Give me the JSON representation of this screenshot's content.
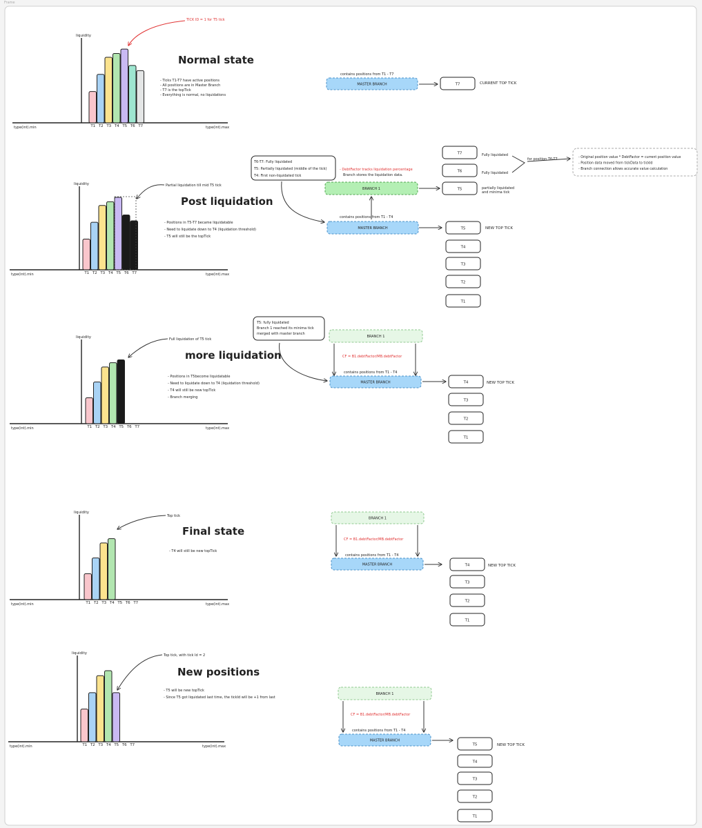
{
  "frame_label": "Frame",
  "colors": {
    "tick": [
      "#f9c6cc",
      "#a9d3f5",
      "#fbe38e",
      "#b2e6b0",
      "#c9b9f3",
      "#9ee6d0",
      "#e4e6e6"
    ],
    "liquidated": "#1a1a1a",
    "master_fill": "#a7d7f9",
    "branch_fill": "#b4efb4",
    "branch_dashed_fill": "#e6f7e6",
    "accent_red": "#e03131"
  },
  "common": {
    "liquidity": "liquidity",
    "axis_min": "type(int).min",
    "axis_max": "type(int).max",
    "ticks": [
      "T1",
      "T2",
      "T3",
      "T4",
      "T5",
      "T6",
      "T7"
    ],
    "master_branch": "MASTER BRANCH",
    "branch1": "BRANCH 1",
    "new_top_tick": "NEW TOP TICK",
    "cf_formula": "CF = B1.debtFactor/MB.debtFactor"
  },
  "sections": [
    {
      "title": "Normal state",
      "annotation": "TICK ID = 1 for T5 tick",
      "bullets": [
        "Ticks T1-T7 have active positions",
        "All positions are in Master Branch",
        "T7 is the topTick",
        "Everything is normal, no liquidations"
      ],
      "bars": [
        {
          "tick": "T1",
          "value": 0.42,
          "color_index": 0
        },
        {
          "tick": "T2",
          "value": 0.65,
          "color_index": 1
        },
        {
          "tick": "T3",
          "value": 0.88,
          "color_index": 2
        },
        {
          "tick": "T4",
          "value": 0.93,
          "color_index": 3
        },
        {
          "tick": "T5",
          "value": 0.99,
          "color_index": 4
        },
        {
          "tick": "T6",
          "value": 0.77,
          "color_index": 5
        },
        {
          "tick": "T7",
          "value": 0.7,
          "color_index": 6
        }
      ],
      "master_caption": "contains positions from T1 - T7",
      "tick_boxes": [
        "T7"
      ],
      "top_tick_label": "CURRENT TOP TICK"
    },
    {
      "title": "Post liquidation",
      "annotation": "Partial liquidation till mid T5 tick",
      "bullets": [
        "Positions in T5-T7 became liquidatable",
        "Need to liquidate down to T4 (liquidation threshold)",
        "T5 will still be the topTick"
      ],
      "bars": [
        {
          "tick": "T1",
          "value": 0.42,
          "color_index": 0
        },
        {
          "tick": "T2",
          "value": 0.65,
          "color_index": 1
        },
        {
          "tick": "T3",
          "value": 0.88,
          "color_index": 2
        },
        {
          "tick": "T4",
          "value": 0.93,
          "color_index": 3
        },
        {
          "tick": "T5",
          "value": 0.99,
          "color_index": 4
        },
        {
          "tick": "T6",
          "value": 0.75,
          "color_index": -1
        },
        {
          "tick": "T7",
          "value": 0.67,
          "color_index": -1
        }
      ],
      "note_box": [
        "T6-T7: Fully liquidated",
        "T5: Partially liquidated (middle of the tick)",
        "T4: First non-liquidated tick"
      ],
      "debt_note": "- DebtFactor tracks liquidation percentage",
      "debt_note2": "Branch stores the liquidation data.",
      "master_caption": "contains positions from T1 - T4",
      "branch_ticks": [
        {
          "tick": "T7",
          "status": "Fully liquidated"
        },
        {
          "tick": "T6",
          "status": "Fully liquidated"
        },
        {
          "tick": "T5",
          "status": "partially liquidated and minima tick"
        }
      ],
      "for_position": "for position T6-T7",
      "info_box": [
        "- Original position value * DebtFactor = current position value",
        "- Position data moved from tickData to tickId",
        "- Branch connection allows accurate value calculation"
      ],
      "tick_boxes": [
        "T5",
        "T4",
        "T3",
        "T2",
        "T1"
      ],
      "top_tick_label": "NEW TOP TICK"
    },
    {
      "title": "more liquidation",
      "annotation": "Full liquidation of T5 tick",
      "bullets": [
        "- Positions in T5become liquidatable",
        "- Need to liquidate down to T4 (liquidation threshold)",
        "- T4 will still be new topTick",
        "- Branch merging"
      ],
      "bars": [
        {
          "tick": "T1",
          "value": 0.36,
          "color_index": 0
        },
        {
          "tick": "T2",
          "value": 0.58,
          "color_index": 1
        },
        {
          "tick": "T3",
          "value": 0.79,
          "color_index": 2
        },
        {
          "tick": "T4",
          "value": 0.85,
          "color_index": 3
        },
        {
          "tick": "T5",
          "value": 0.89,
          "color_index": -1
        }
      ],
      "note_box": [
        "T5: fully liquidated",
        "Branch 1 reached its minima tick",
        "merged with master branch"
      ],
      "master_caption": "contains positions from T1 - T4",
      "tick_boxes": [
        "T4",
        "T3",
        "T2",
        "T1"
      ],
      "top_tick_label": "NEW TOP TICK"
    },
    {
      "title": "Final state",
      "annotation": "Top tick",
      "bullets": [
        "- T4 will still be new topTick"
      ],
      "bars": [
        {
          "tick": "T1",
          "value": 0.36,
          "color_index": 0
        },
        {
          "tick": "T2",
          "value": 0.58,
          "color_index": 1
        },
        {
          "tick": "T3",
          "value": 0.79,
          "color_index": 2
        },
        {
          "tick": "T4",
          "value": 0.85,
          "color_index": 3
        }
      ],
      "master_caption": "contains positions from T1 - T4",
      "tick_boxes": [
        "T4",
        "T3",
        "T2",
        "T1"
      ],
      "top_tick_label": "NEW TOP TICK"
    },
    {
      "title": "New positions",
      "annotation": "Top tick, with tick Id = 2",
      "bullets": [
        "- T5 will be new topTick",
        "- Since T5 got liquidated last time, the tickId will be +1 from last"
      ],
      "bars": [
        {
          "tick": "T1",
          "value": 0.46,
          "color_index": 0
        },
        {
          "tick": "T2",
          "value": 0.69,
          "color_index": 1
        },
        {
          "tick": "T3",
          "value": 0.93,
          "color_index": 2
        },
        {
          "tick": "T4",
          "value": 1.0,
          "color_index": 3
        },
        {
          "tick": "T5",
          "value": 0.69,
          "color_index": 4
        }
      ],
      "master_caption": "contains positions from T1 - T4",
      "tick_boxes": [
        "T5",
        "T4",
        "T3",
        "T2",
        "T1"
      ],
      "top_tick_label": "NEW TOP TICK"
    }
  ]
}
